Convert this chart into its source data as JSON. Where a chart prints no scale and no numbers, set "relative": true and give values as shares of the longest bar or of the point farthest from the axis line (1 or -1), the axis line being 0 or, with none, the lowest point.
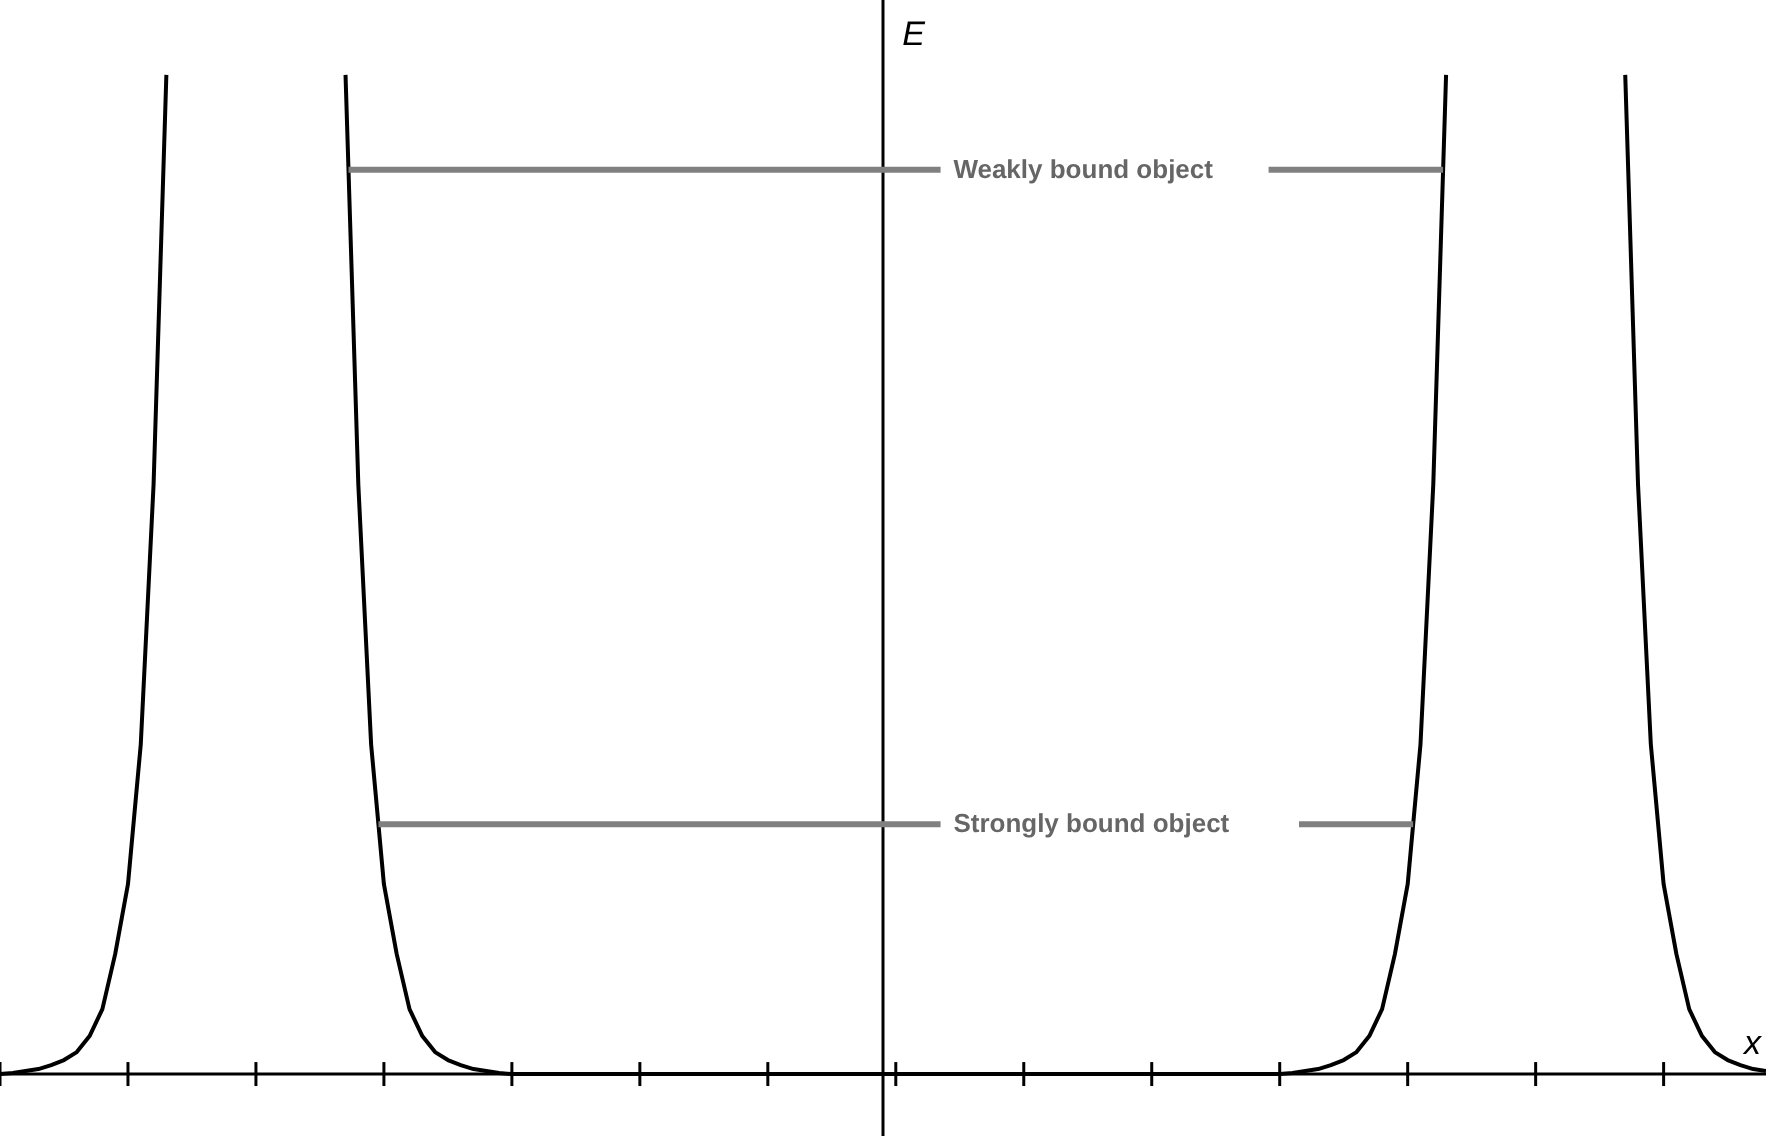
{
  "chart_data": {
    "type": "line",
    "relative": true,
    "xlabel": "x",
    "ylabel": "E",
    "marker": "none",
    "line_style": "solid",
    "categories": [
      null,
      null,
      null,
      null,
      null,
      null,
      null,
      null,
      null,
      null,
      null,
      null,
      null,
      null,
      null,
      null,
      null,
      null,
      null,
      null,
      null,
      null,
      null,
      null,
      null,
      null,
      null,
      null,
      null,
      null,
      null,
      null,
      null,
      null,
      null,
      null,
      null,
      null,
      null,
      null,
      null,
      null,
      null,
      null,
      null,
      null,
      null,
      null,
      null,
      null,
      null,
      null,
      null,
      null,
      null,
      null,
      null,
      null,
      null,
      null,
      null,
      null,
      null,
      null,
      null,
      null,
      null,
      null,
      null,
      null,
      null,
      null,
      null,
      null,
      null,
      null,
      null,
      null,
      null,
      null,
      null,
      null,
      null,
      null,
      null,
      null,
      null,
      null,
      null,
      null,
      null,
      null,
      null,
      null,
      null,
      null,
      null,
      null,
      null,
      null,
      null,
      null,
      null,
      null,
      null,
      null,
      null,
      null,
      null,
      null,
      null,
      null,
      null,
      null,
      null,
      null,
      null,
      null,
      null,
      null,
      null,
      null,
      null,
      null,
      null,
      null,
      null,
      null,
      null,
      null,
      null,
      null,
      null,
      null,
      null,
      null,
      null,
      null,
      null
    ],
    "series": [
      {
        "color": "#000000",
        "values": [
          0,
          0.001,
          0.003,
          0.005,
          0.009,
          0.014,
          0.022,
          0.038,
          0.065,
          0.12,
          0.19,
          0.33,
          0.59,
          1,
          null,
          null,
          null,
          null,
          null,
          null,
          null,
          null,
          null,
          null,
          null,
          null,
          null,
          null,
          null,
          null,
          null,
          null,
          null,
          null,
          null,
          null,
          null,
          null,
          null,
          null,
          null,
          null,
          null,
          null,
          null,
          null,
          null,
          null,
          null,
          null,
          null,
          null,
          null,
          null,
          null,
          null,
          null,
          null,
          null,
          null,
          null,
          null,
          null,
          null,
          null,
          null,
          null,
          null,
          null,
          null,
          null,
          null,
          null,
          null,
          null,
          null,
          null,
          null,
          null,
          null,
          null,
          null,
          null,
          null,
          null,
          null,
          null,
          null,
          null,
          null,
          null,
          null,
          null,
          null,
          null,
          null,
          null,
          null,
          null,
          null,
          null,
          null,
          null,
          null,
          null,
          null,
          null,
          null,
          null,
          null,
          null,
          null,
          null,
          null,
          null,
          null,
          null,
          null,
          null,
          null,
          null,
          null,
          null,
          null,
          null,
          null,
          null,
          null,
          null,
          null,
          null,
          null,
          null,
          null,
          null,
          null,
          null,
          null,
          null
        ]
      },
      {
        "color": "#000000",
        "values": [
          null,
          null,
          null,
          null,
          null,
          null,
          null,
          null,
          null,
          null,
          null,
          null,
          null,
          null,
          null,
          null,
          null,
          null,
          null,
          null,
          null,
          null,
          null,
          null,
          null,
          null,
          null,
          1,
          0.59,
          0.33,
          0.19,
          0.12,
          0.065,
          0.038,
          0.022,
          0.014,
          0.009,
          0.005,
          0.003,
          0.001,
          0,
          0,
          0,
          0,
          0,
          0,
          0,
          0,
          0,
          0,
          0,
          0,
          0,
          0,
          0,
          0,
          0,
          0,
          0,
          0,
          0,
          0,
          0,
          0,
          0,
          0,
          0,
          0,
          0,
          0,
          0,
          0,
          0,
          0,
          0,
          0,
          0,
          0,
          0,
          0,
          0,
          0,
          0,
          0,
          0,
          0,
          0,
          0,
          0,
          0,
          0,
          0,
          0,
          0,
          0,
          0,
          0,
          0,
          0,
          0,
          0,
          0.001,
          0.003,
          0.005,
          0.009,
          0.014,
          0.022,
          0.038,
          0.065,
          0.12,
          0.19,
          0.33,
          0.59,
          1,
          null,
          null,
          null,
          null,
          null,
          null,
          null,
          null,
          null,
          null,
          null,
          null,
          null,
          null,
          null,
          null,
          null,
          null,
          null,
          null,
          null,
          null,
          null,
          null,
          null
        ]
      },
      {
        "color": "#000000",
        "values": [
          null,
          null,
          null,
          null,
          null,
          null,
          null,
          null,
          null,
          null,
          null,
          null,
          null,
          null,
          null,
          null,
          null,
          null,
          null,
          null,
          null,
          null,
          null,
          null,
          null,
          null,
          null,
          null,
          null,
          null,
          null,
          null,
          null,
          null,
          null,
          null,
          null,
          null,
          null,
          null,
          null,
          null,
          null,
          null,
          null,
          null,
          null,
          null,
          null,
          null,
          null,
          null,
          null,
          null,
          null,
          null,
          null,
          null,
          null,
          null,
          null,
          null,
          null,
          null,
          null,
          null,
          null,
          null,
          null,
          null,
          null,
          null,
          null,
          null,
          null,
          null,
          null,
          null,
          null,
          null,
          null,
          null,
          null,
          null,
          null,
          null,
          null,
          null,
          null,
          null,
          null,
          null,
          null,
          null,
          null,
          null,
          null,
          null,
          null,
          null,
          null,
          null,
          null,
          null,
          null,
          null,
          null,
          null,
          null,
          null,
          null,
          null,
          null,
          null,
          null,
          null,
          null,
          null,
          null,
          null,
          null,
          null,
          null,
          null,
          null,
          null,
          null,
          1,
          0.59,
          0.33,
          0.19,
          0.12,
          0.065,
          0.038,
          0.022,
          0.014,
          0.009,
          0.005,
          0.003
        ]
      }
    ],
    "ref_lines": [
      {
        "axis": "y",
        "value": 0.905,
        "label": "Weakly bound object",
        "color": "#808080"
      },
      {
        "axis": "y",
        "value": 0.25,
        "label": "Strongly bound object",
        "color": "#808080"
      }
    ]
  }
}
